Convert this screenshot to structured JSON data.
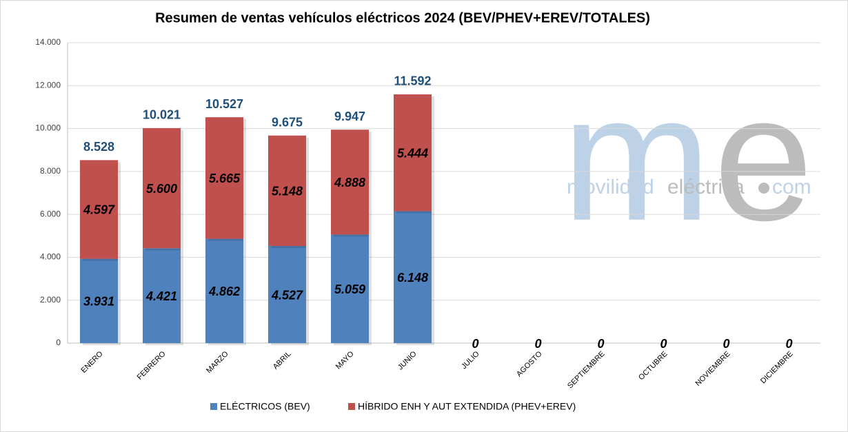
{
  "chart_data": {
    "type": "stacked_bar",
    "title": "Resumen de ventas vehículos eléctricos 2024 (BEV/PHEV+EREV/TOTALES)",
    "categories": [
      "ENERO",
      "FEBRERO",
      "MARZO",
      "ABRIL",
      "MAYO",
      "JUNIO",
      "JULIO",
      "AGOSTO",
      "SEPTIEMBRE",
      "OCTUBRE",
      "NOVIEMBRE",
      "DICIEMBRE"
    ],
    "series": [
      {
        "name": "ELÉCTRICOS (BEV)",
        "color": "#4f81bd",
        "values": [
          3931,
          4421,
          4862,
          4527,
          5059,
          6148,
          0,
          0,
          0,
          0,
          0,
          0
        ],
        "value_labels": [
          "3.931",
          "4.421",
          "4.862",
          "4.527",
          "5.059",
          "6.148",
          "0",
          "0",
          "0",
          "0",
          "0",
          "0"
        ]
      },
      {
        "name": "HÍBRIDO ENH Y AUT EXTENDIDA (PHEV+EREV)",
        "color": "#c0504d",
        "values": [
          4597,
          5600,
          5665,
          5148,
          4888,
          5444,
          0,
          0,
          0,
          0,
          0,
          0
        ],
        "value_labels": [
          "4.597",
          "5.600",
          "5.665",
          "5.148",
          "4.888",
          "5.444",
          null,
          null,
          null,
          null,
          null,
          null
        ]
      }
    ],
    "totals": {
      "values": [
        8528,
        10021,
        10527,
        9675,
        9947,
        11592,
        null,
        null,
        null,
        null,
        null,
        null
      ],
      "value_labels": [
        "8.528",
        "10.021",
        "10.527",
        "9.675",
        "9.947",
        "11.592",
        null,
        null,
        null,
        null,
        null,
        null
      ]
    },
    "ylim": [
      0,
      14000
    ],
    "yticks": [
      0,
      {
        "value": 2000,
        "label": "2.000"
      },
      {
        "value": 4000,
        "label": "4.000"
      },
      {
        "value": 6000,
        "label": "6.000"
      },
      {
        "value": 8000,
        "label": "8.000"
      },
      {
        "value": 10000,
        "label": "10.000"
      },
      {
        "value": 12000,
        "label": "12.000"
      },
      {
        "value": 14000,
        "label": "14.000"
      }
    ],
    "grid": true,
    "legend": "bottom",
    "watermark": {
      "logo_m": "m",
      "logo_e": "e",
      "text_1": "movilidad",
      "text_2": "eléctrica",
      "text_3": "com"
    }
  }
}
